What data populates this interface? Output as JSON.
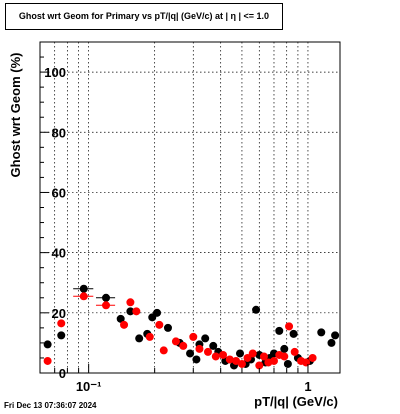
{
  "chart_data": {
    "type": "scatter",
    "title": "Ghost wrt Geom for Primary vs pT/|q| (GeV/c) at |  η  | <= 1.0",
    "xlabel": "pT/|q| (GeV/c)",
    "ylabel": "Ghost wrt Geom (%)",
    "xscale": "log",
    "xlim": [
      0.06,
      1.4
    ],
    "ylim": [
      0,
      110
    ],
    "grid": true,
    "y_ticks": [
      "0",
      "20",
      "40",
      "60",
      "80",
      "100"
    ],
    "x_ticks": [
      {
        "value": 0.1,
        "label": "10⁻¹"
      },
      {
        "value": 1,
        "label": "1"
      }
    ],
    "series": [
      {
        "color": "#000000",
        "points": [
          {
            "x": 0.065,
            "y": 9.5
          },
          {
            "x": 0.075,
            "y": 12.5
          },
          {
            "x": 0.095,
            "y": 28,
            "xerr": 0.01
          },
          {
            "x": 0.12,
            "y": 25,
            "xerr": 0.012
          },
          {
            "x": 0.14,
            "y": 18
          },
          {
            "x": 0.155,
            "y": 20.5
          },
          {
            "x": 0.17,
            "y": 11.5
          },
          {
            "x": 0.185,
            "y": 13
          },
          {
            "x": 0.195,
            "y": 18.5
          },
          {
            "x": 0.205,
            "y": 20
          },
          {
            "x": 0.23,
            "y": 15
          },
          {
            "x": 0.26,
            "y": 10
          },
          {
            "x": 0.29,
            "y": 6.5
          },
          {
            "x": 0.31,
            "y": 4.5
          },
          {
            "x": 0.32,
            "y": 9.5
          },
          {
            "x": 0.34,
            "y": 11.5
          },
          {
            "x": 0.37,
            "y": 9
          },
          {
            "x": 0.39,
            "y": 7
          },
          {
            "x": 0.42,
            "y": 4
          },
          {
            "x": 0.46,
            "y": 2.5
          },
          {
            "x": 0.49,
            "y": 6.5
          },
          {
            "x": 0.52,
            "y": 3
          },
          {
            "x": 0.55,
            "y": 4.5
          },
          {
            "x": 0.58,
            "y": 21
          },
          {
            "x": 0.6,
            "y": 6
          },
          {
            "x": 0.64,
            "y": 3.5
          },
          {
            "x": 0.67,
            "y": 5
          },
          {
            "x": 0.7,
            "y": 6.5
          },
          {
            "x": 0.74,
            "y": 14
          },
          {
            "x": 0.78,
            "y": 8
          },
          {
            "x": 0.81,
            "y": 3
          },
          {
            "x": 0.86,
            "y": 13
          },
          {
            "x": 0.9,
            "y": 5
          },
          {
            "x": 1.02,
            "y": 4
          },
          {
            "x": 1.15,
            "y": 13.5
          },
          {
            "x": 1.28,
            "y": 10
          },
          {
            "x": 1.33,
            "y": 12.5
          }
        ]
      },
      {
        "color": "#ff0000",
        "points": [
          {
            "x": 0.065,
            "y": 4
          },
          {
            "x": 0.075,
            "y": 16.5
          },
          {
            "x": 0.095,
            "y": 25.5,
            "xerr": 0.01
          },
          {
            "x": 0.12,
            "y": 22.5,
            "xerr": 0.012
          },
          {
            "x": 0.145,
            "y": 16
          },
          {
            "x": 0.155,
            "y": 23.5
          },
          {
            "x": 0.165,
            "y": 20.5
          },
          {
            "x": 0.19,
            "y": 12
          },
          {
            "x": 0.21,
            "y": 16
          },
          {
            "x": 0.22,
            "y": 7.5
          },
          {
            "x": 0.25,
            "y": 10.5
          },
          {
            "x": 0.27,
            "y": 9
          },
          {
            "x": 0.3,
            "y": 12
          },
          {
            "x": 0.32,
            "y": 8
          },
          {
            "x": 0.35,
            "y": 7
          },
          {
            "x": 0.38,
            "y": 5.5
          },
          {
            "x": 0.41,
            "y": 6
          },
          {
            "x": 0.44,
            "y": 4.5
          },
          {
            "x": 0.47,
            "y": 4
          },
          {
            "x": 0.5,
            "y": 3
          },
          {
            "x": 0.53,
            "y": 5
          },
          {
            "x": 0.56,
            "y": 6.5
          },
          {
            "x": 0.6,
            "y": 2.5
          },
          {
            "x": 0.63,
            "y": 5.5
          },
          {
            "x": 0.66,
            "y": 3.5
          },
          {
            "x": 0.7,
            "y": 4
          },
          {
            "x": 0.74,
            "y": 6
          },
          {
            "x": 0.78,
            "y": 5.5
          },
          {
            "x": 0.82,
            "y": 15.5
          },
          {
            "x": 0.87,
            "y": 7
          },
          {
            "x": 0.93,
            "y": 4
          },
          {
            "x": 0.98,
            "y": 3.5
          },
          {
            "x": 1.05,
            "y": 5
          }
        ]
      }
    ]
  },
  "footer": "Fri Dec 13 07:36:07 2024"
}
